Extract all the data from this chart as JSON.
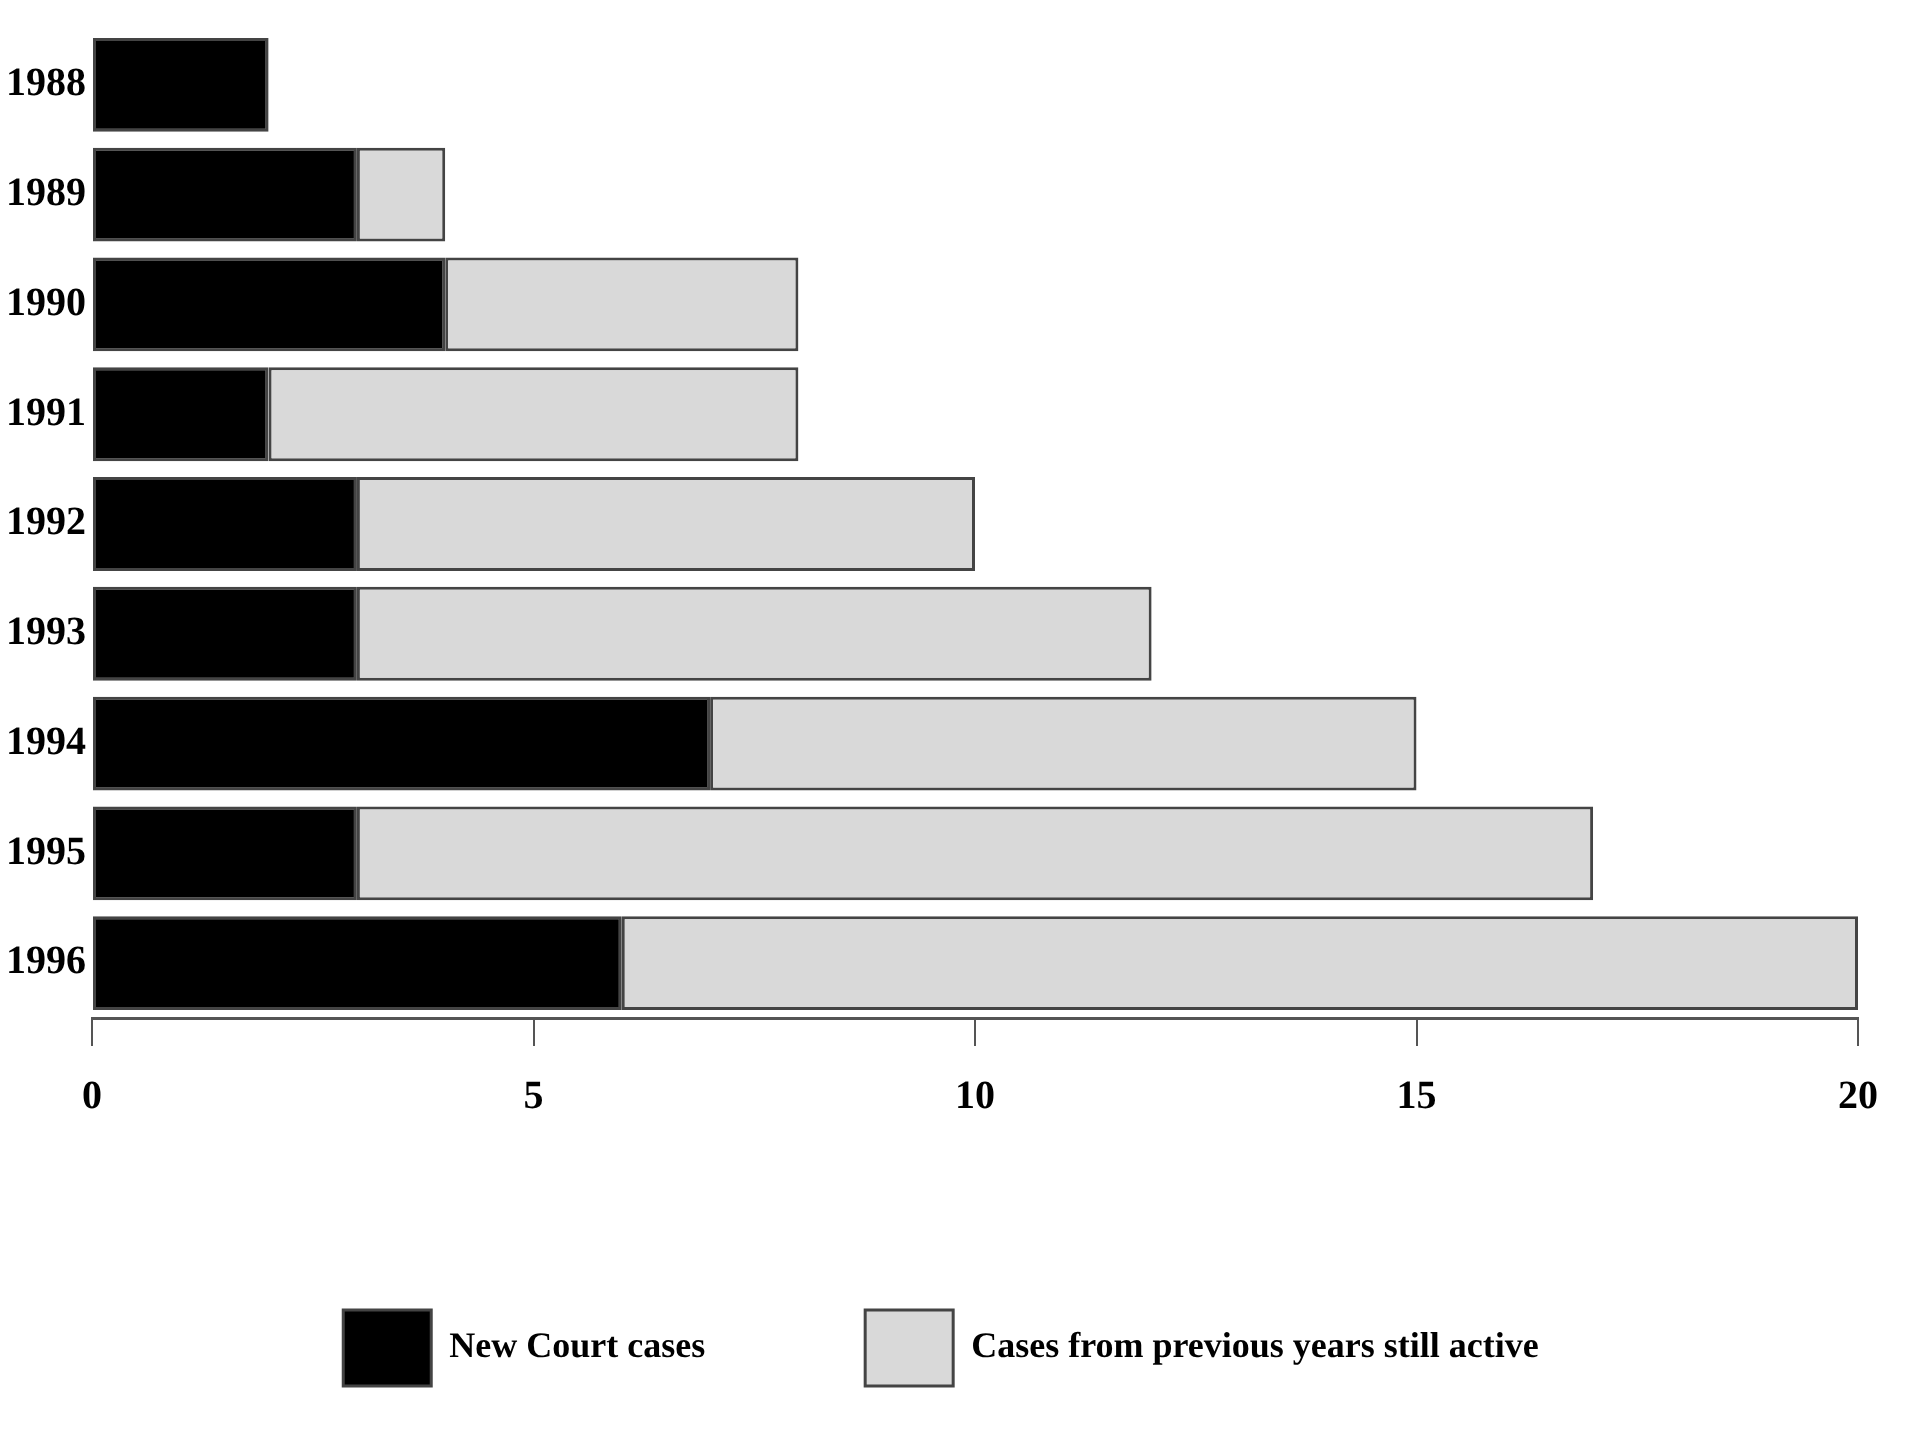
{
  "chart_data": {
    "type": "bar",
    "orientation": "horizontal",
    "stacked": true,
    "categories": [
      "1988",
      "1989",
      "1990",
      "1991",
      "1992",
      "1993",
      "1994",
      "1995",
      "1996"
    ],
    "series": [
      {
        "name": "New Court cases",
        "color": "#000000",
        "values": [
          2,
          3,
          4,
          2,
          3,
          3,
          7,
          3,
          6
        ]
      },
      {
        "name": "Cases from previous years still active",
        "color": "#d9d9d9",
        "values": [
          0,
          1,
          4,
          6,
          7,
          9,
          8,
          14,
          14
        ]
      }
    ],
    "xlim": [
      0,
      20
    ],
    "xticks": [
      0,
      5,
      10,
      15,
      20
    ],
    "grid": false,
    "legend": "bottom"
  }
}
